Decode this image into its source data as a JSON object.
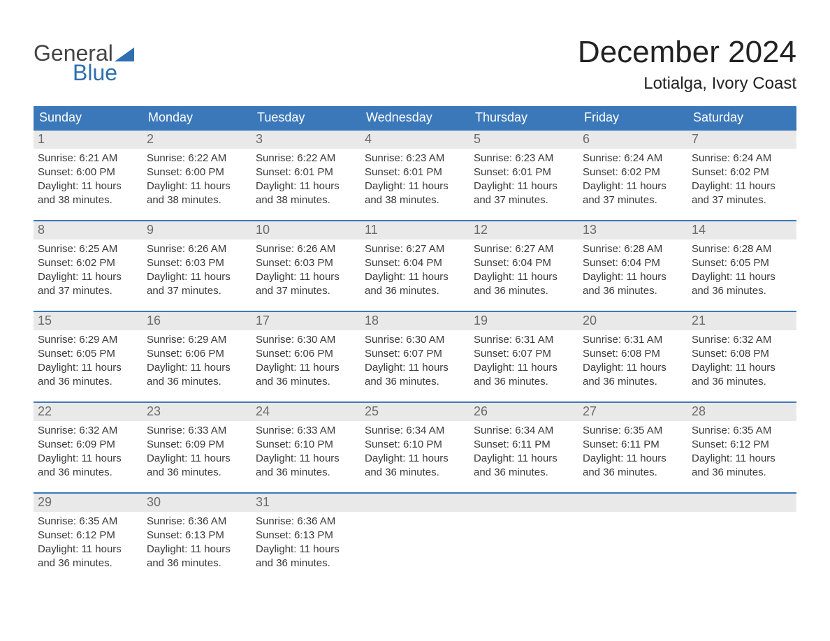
{
  "brand": {
    "line1": "General",
    "line2": "Blue"
  },
  "title": "December 2024",
  "location": "Lotialga, Ivory Coast",
  "colors": {
    "header_bg": "#3b78b9",
    "header_text": "#ffffff",
    "week_rule": "#3b78b9",
    "daynum_bg": "#e9e9e9",
    "daynum_text": "#6b6b6b",
    "body_text": "#3a3a3a",
    "page_bg": "#ffffff",
    "logo_blue": "#2f6fb0",
    "logo_gray": "#444444"
  },
  "typography": {
    "title_fontsize": 44,
    "location_fontsize": 24,
    "header_fontsize": 18,
    "daynum_fontsize": 18,
    "body_fontsize": 15
  },
  "weekdays": [
    "Sunday",
    "Monday",
    "Tuesday",
    "Wednesday",
    "Thursday",
    "Friday",
    "Saturday"
  ],
  "labels": {
    "sunrise": "Sunrise",
    "sunset": "Sunset",
    "daylight_prefix": "Daylight"
  },
  "weeks": [
    [
      {
        "n": 1,
        "sunrise": "6:21 AM",
        "sunset": "6:00 PM",
        "daylight": "11 hours and 38 minutes."
      },
      {
        "n": 2,
        "sunrise": "6:22 AM",
        "sunset": "6:00 PM",
        "daylight": "11 hours and 38 minutes."
      },
      {
        "n": 3,
        "sunrise": "6:22 AM",
        "sunset": "6:01 PM",
        "daylight": "11 hours and 38 minutes."
      },
      {
        "n": 4,
        "sunrise": "6:23 AM",
        "sunset": "6:01 PM",
        "daylight": "11 hours and 38 minutes."
      },
      {
        "n": 5,
        "sunrise": "6:23 AM",
        "sunset": "6:01 PM",
        "daylight": "11 hours and 37 minutes."
      },
      {
        "n": 6,
        "sunrise": "6:24 AM",
        "sunset": "6:02 PM",
        "daylight": "11 hours and 37 minutes."
      },
      {
        "n": 7,
        "sunrise": "6:24 AM",
        "sunset": "6:02 PM",
        "daylight": "11 hours and 37 minutes."
      }
    ],
    [
      {
        "n": 8,
        "sunrise": "6:25 AM",
        "sunset": "6:02 PM",
        "daylight": "11 hours and 37 minutes."
      },
      {
        "n": 9,
        "sunrise": "6:26 AM",
        "sunset": "6:03 PM",
        "daylight": "11 hours and 37 minutes."
      },
      {
        "n": 10,
        "sunrise": "6:26 AM",
        "sunset": "6:03 PM",
        "daylight": "11 hours and 37 minutes."
      },
      {
        "n": 11,
        "sunrise": "6:27 AM",
        "sunset": "6:04 PM",
        "daylight": "11 hours and 36 minutes."
      },
      {
        "n": 12,
        "sunrise": "6:27 AM",
        "sunset": "6:04 PM",
        "daylight": "11 hours and 36 minutes."
      },
      {
        "n": 13,
        "sunrise": "6:28 AM",
        "sunset": "6:04 PM",
        "daylight": "11 hours and 36 minutes."
      },
      {
        "n": 14,
        "sunrise": "6:28 AM",
        "sunset": "6:05 PM",
        "daylight": "11 hours and 36 minutes."
      }
    ],
    [
      {
        "n": 15,
        "sunrise": "6:29 AM",
        "sunset": "6:05 PM",
        "daylight": "11 hours and 36 minutes."
      },
      {
        "n": 16,
        "sunrise": "6:29 AM",
        "sunset": "6:06 PM",
        "daylight": "11 hours and 36 minutes."
      },
      {
        "n": 17,
        "sunrise": "6:30 AM",
        "sunset": "6:06 PM",
        "daylight": "11 hours and 36 minutes."
      },
      {
        "n": 18,
        "sunrise": "6:30 AM",
        "sunset": "6:07 PM",
        "daylight": "11 hours and 36 minutes."
      },
      {
        "n": 19,
        "sunrise": "6:31 AM",
        "sunset": "6:07 PM",
        "daylight": "11 hours and 36 minutes."
      },
      {
        "n": 20,
        "sunrise": "6:31 AM",
        "sunset": "6:08 PM",
        "daylight": "11 hours and 36 minutes."
      },
      {
        "n": 21,
        "sunrise": "6:32 AM",
        "sunset": "6:08 PM",
        "daylight": "11 hours and 36 minutes."
      }
    ],
    [
      {
        "n": 22,
        "sunrise": "6:32 AM",
        "sunset": "6:09 PM",
        "daylight": "11 hours and 36 minutes."
      },
      {
        "n": 23,
        "sunrise": "6:33 AM",
        "sunset": "6:09 PM",
        "daylight": "11 hours and 36 minutes."
      },
      {
        "n": 24,
        "sunrise": "6:33 AM",
        "sunset": "6:10 PM",
        "daylight": "11 hours and 36 minutes."
      },
      {
        "n": 25,
        "sunrise": "6:34 AM",
        "sunset": "6:10 PM",
        "daylight": "11 hours and 36 minutes."
      },
      {
        "n": 26,
        "sunrise": "6:34 AM",
        "sunset": "6:11 PM",
        "daylight": "11 hours and 36 minutes."
      },
      {
        "n": 27,
        "sunrise": "6:35 AM",
        "sunset": "6:11 PM",
        "daylight": "11 hours and 36 minutes."
      },
      {
        "n": 28,
        "sunrise": "6:35 AM",
        "sunset": "6:12 PM",
        "daylight": "11 hours and 36 minutes."
      }
    ],
    [
      {
        "n": 29,
        "sunrise": "6:35 AM",
        "sunset": "6:12 PM",
        "daylight": "11 hours and 36 minutes."
      },
      {
        "n": 30,
        "sunrise": "6:36 AM",
        "sunset": "6:13 PM",
        "daylight": "11 hours and 36 minutes."
      },
      {
        "n": 31,
        "sunrise": "6:36 AM",
        "sunset": "6:13 PM",
        "daylight": "11 hours and 36 minutes."
      },
      null,
      null,
      null,
      null
    ]
  ]
}
